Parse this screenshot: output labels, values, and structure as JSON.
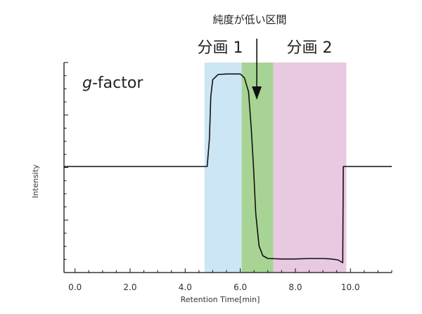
{
  "chart_data": {
    "type": "line",
    "title": "",
    "xlabel": "Retention Time[min]",
    "ylabel": "Intensity",
    "xlim": [
      -0.4,
      11.5
    ],
    "xticks": [
      0.0,
      2.0,
      4.0,
      6.0,
      8.0,
      10.0
    ],
    "xtick_labels": [
      "0.0",
      "2.0",
      "4.0",
      "6.0",
      "8.0",
      "10.0"
    ],
    "baseline_y": 0,
    "ylim": [
      -1.05,
      1.05
    ],
    "grid": false,
    "in_plot_label": {
      "prefix": "g",
      "text": "-factor"
    },
    "regions": [
      {
        "label": "分画 1",
        "x_start": 4.7,
        "x_end": 6.05,
        "color": "#cce6f6"
      },
      {
        "label": "",
        "x_start": 6.05,
        "x_end": 7.2,
        "color": "#a7d494"
      },
      {
        "label": "分画 2",
        "x_start": 7.2,
        "x_end": 9.85,
        "color": "#e9c9e1"
      }
    ],
    "annotation": {
      "text": "純度が低い区間",
      "x": 6.6
    },
    "series": [
      {
        "name": "",
        "color": "#111111",
        "points": [
          [
            -0.4,
            0
          ],
          [
            4.8,
            0
          ],
          [
            4.88,
            0.3
          ],
          [
            4.93,
            0.75
          ],
          [
            5.0,
            0.93
          ],
          [
            5.2,
            0.985
          ],
          [
            5.5,
            0.99
          ],
          [
            6.0,
            0.99
          ],
          [
            6.15,
            0.95
          ],
          [
            6.3,
            0.8
          ],
          [
            6.4,
            0.4
          ],
          [
            6.48,
            0.0
          ],
          [
            6.56,
            -0.5
          ],
          [
            6.68,
            -0.85
          ],
          [
            6.82,
            -0.955
          ],
          [
            7.0,
            -0.985
          ],
          [
            7.5,
            -0.99
          ],
          [
            8.0,
            -0.99
          ],
          [
            8.5,
            -0.985
          ],
          [
            9.0,
            -0.985
          ],
          [
            9.3,
            -0.99
          ],
          [
            9.55,
            -1.0
          ],
          [
            9.72,
            -1.03
          ],
          [
            9.74,
            0.0
          ],
          [
            11.5,
            0.0
          ]
        ]
      }
    ]
  }
}
